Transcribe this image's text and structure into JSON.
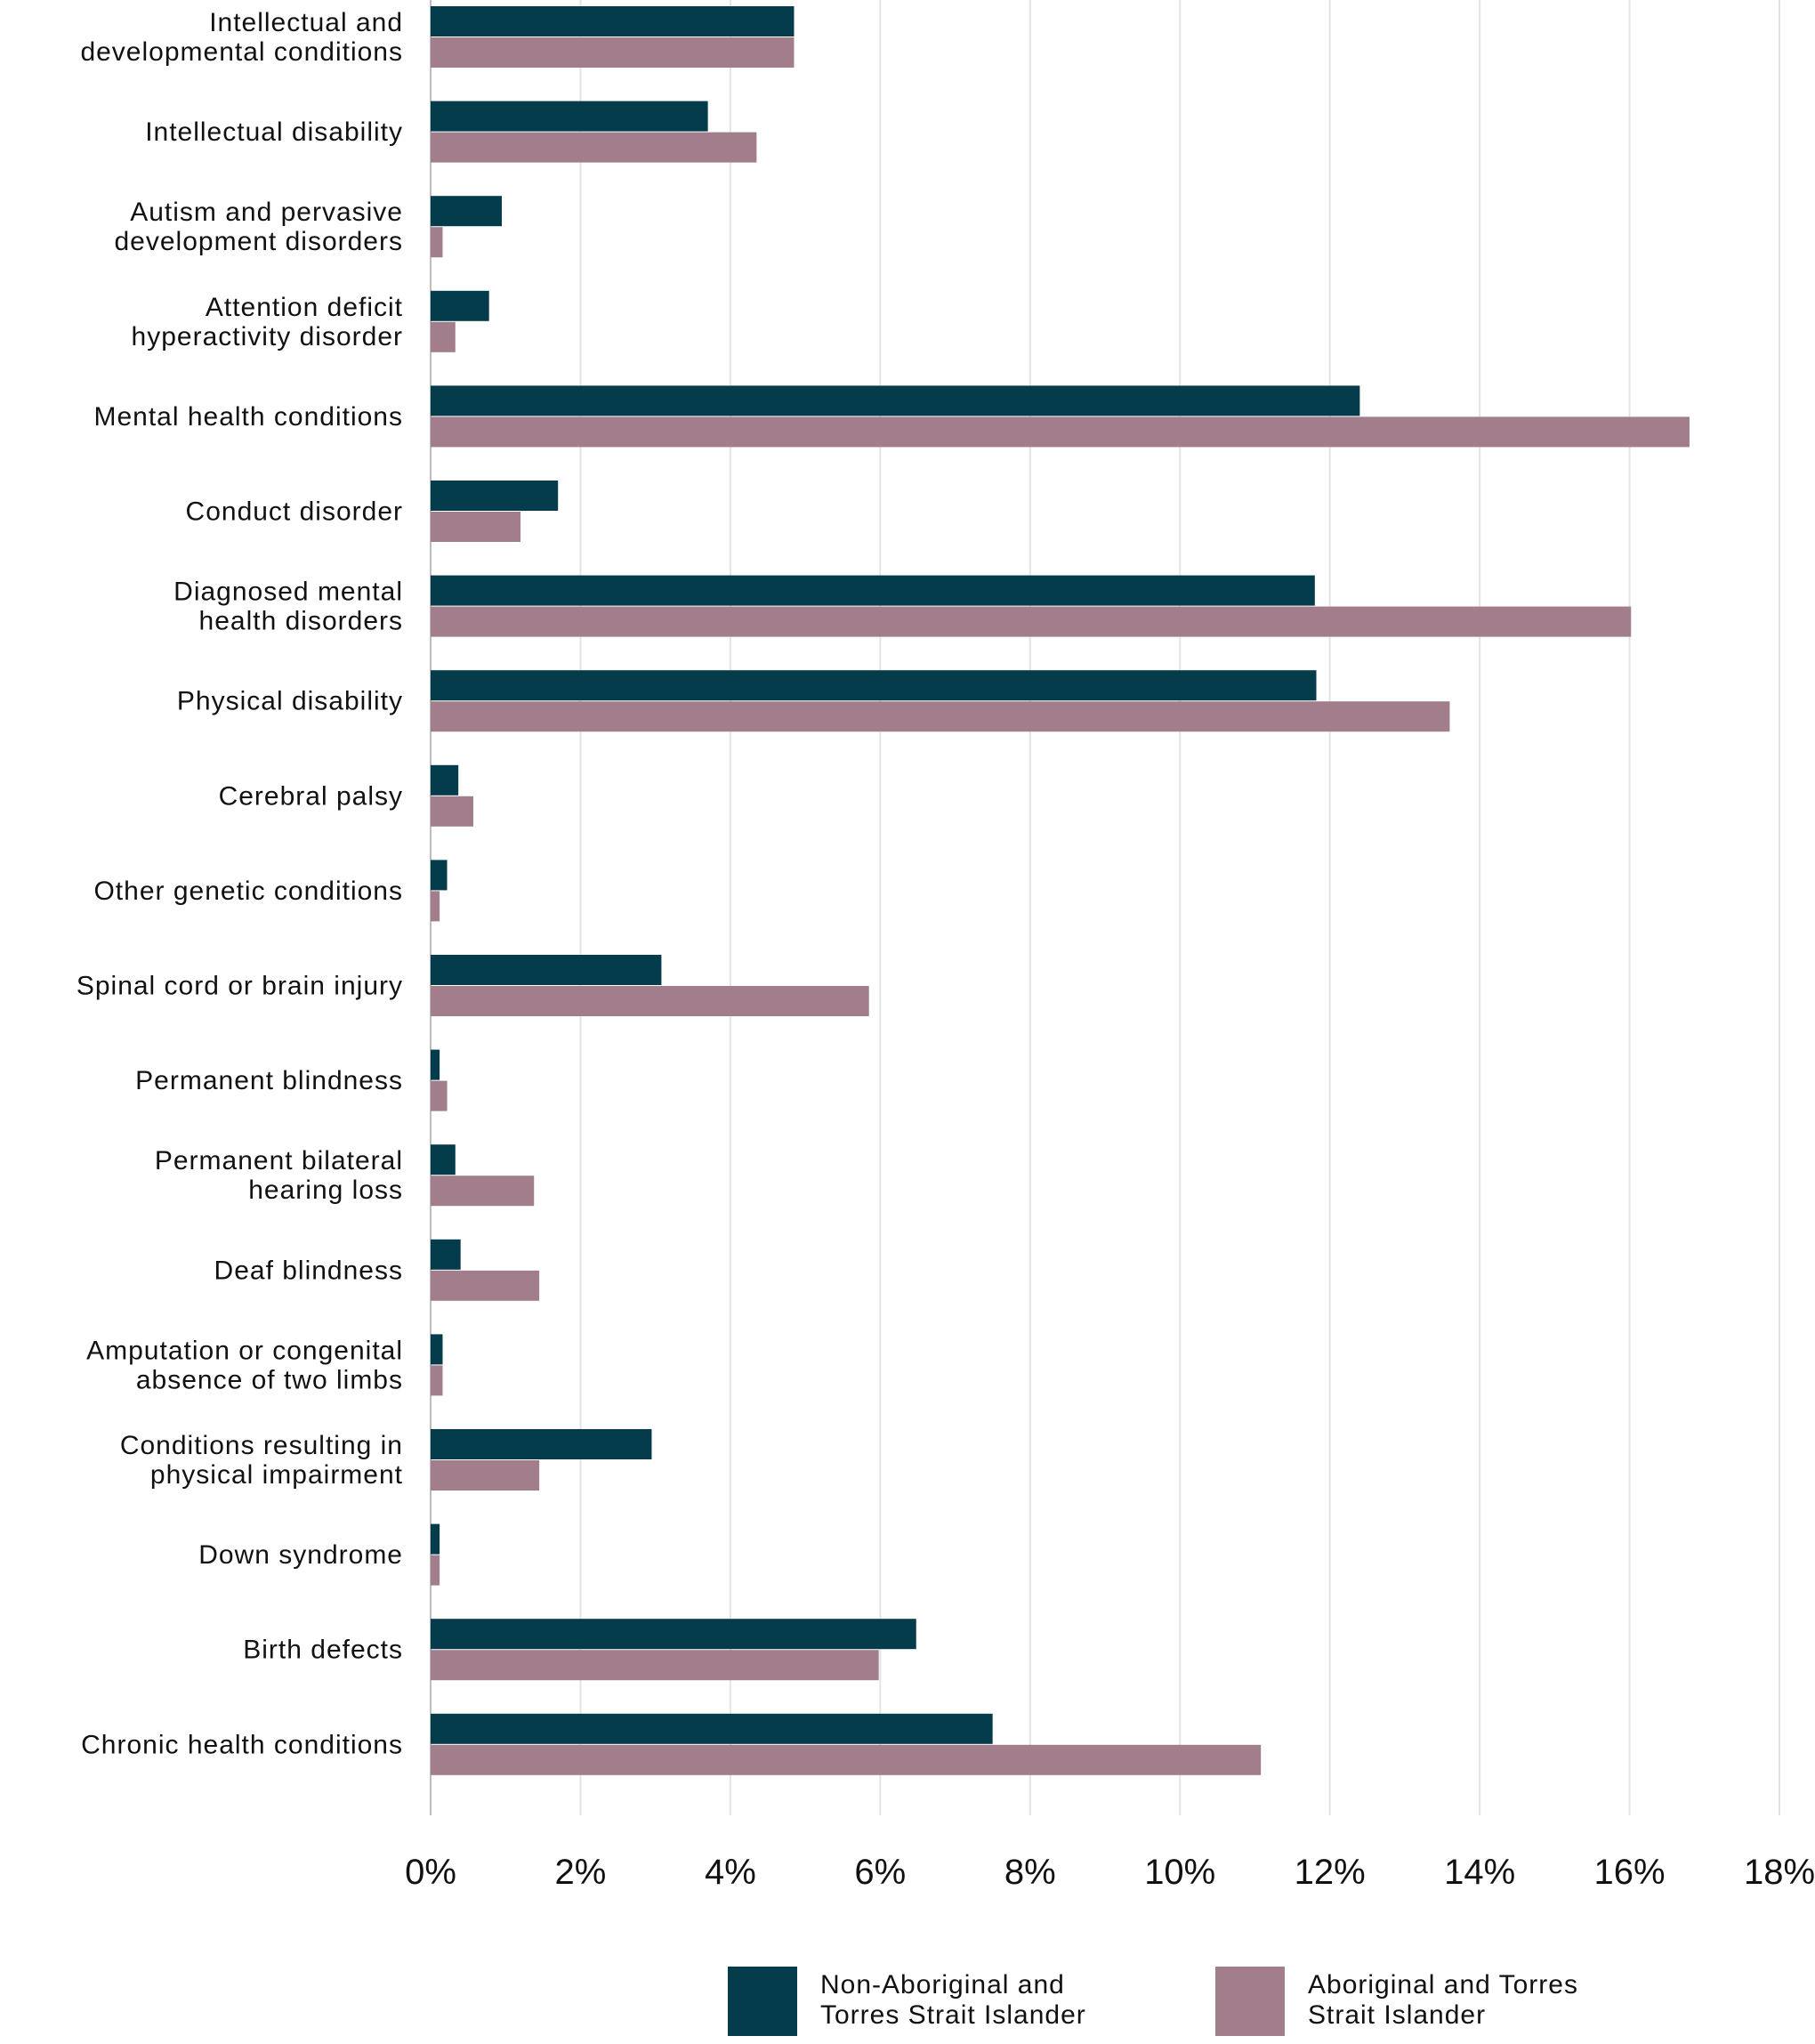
{
  "chart_data": {
    "type": "bar",
    "orientation": "horizontal",
    "title": "",
    "xlabel": "",
    "ylabel": "",
    "xlim": [
      0,
      18
    ],
    "x_ticks": [
      "0%",
      "2%",
      "4%",
      "6%",
      "8%",
      "10%",
      "12%",
      "14%",
      "16%",
      "18%"
    ],
    "grid": true,
    "legend_position": "bottom",
    "categories": [
      "Intellectual and developmental conditions",
      "Intellectual disability",
      "Autism and pervasive development disorders",
      "Attention deficit hyperactivity disorder",
      "Mental health conditions",
      "Conduct disorder",
      "Diagnosed mental health disorders",
      "Physical disability",
      "Cerebral palsy",
      "Other genetic conditions",
      "Spinal cord or brain injury",
      "Permanent blindness",
      "Permanent bilateral hearing loss",
      "Deaf blindness",
      "Amputation or congenital absence of two limbs",
      "Conditions resulting in physical impairment",
      "Down syndrome",
      "Birth defects",
      "Chronic health conditions"
    ],
    "category_lines": [
      [
        "Intellectual and",
        "developmental conditions"
      ],
      [
        "Intellectual disability"
      ],
      [
        "Autism and pervasive",
        "development disorders"
      ],
      [
        "Attention deficit",
        "hyperactivity disorder"
      ],
      [
        "Mental health conditions"
      ],
      [
        "Conduct disorder"
      ],
      [
        "Diagnosed mental",
        "health disorders"
      ],
      [
        "Physical disability"
      ],
      [
        "Cerebral palsy"
      ],
      [
        "Other genetic conditions"
      ],
      [
        "Spinal cord or brain injury"
      ],
      [
        "Permanent blindness"
      ],
      [
        "Permanent bilateral",
        "hearing loss"
      ],
      [
        "Deaf blindness"
      ],
      [
        "Amputation or congenital",
        "absence of two limbs"
      ],
      [
        "Conditions resulting in",
        "physical impairment"
      ],
      [
        "Down syndrome"
      ],
      [
        "Birth defects"
      ],
      [
        "Chronic health conditions"
      ]
    ],
    "series": [
      {
        "name": "Non-Aboriginal and Torres Strait Islander",
        "color": "#053c4b",
        "values": [
          4.85,
          3.7,
          0.95,
          0.78,
          12.4,
          1.7,
          11.8,
          11.82,
          0.37,
          0.22,
          3.08,
          0.12,
          0.33,
          0.4,
          0.16,
          2.95,
          0.12,
          6.48,
          7.5
        ]
      },
      {
        "name": "Aboriginal and Torres Strait Islander",
        "color": "#a27e8c",
        "values": [
          4.85,
          4.35,
          0.16,
          0.33,
          16.8,
          1.2,
          16.02,
          13.6,
          0.57,
          0.12,
          5.85,
          0.22,
          1.38,
          1.45,
          0.16,
          1.45,
          0.12,
          5.98,
          11.08
        ]
      }
    ]
  },
  "legend": {
    "items": [
      {
        "lines": [
          "Non-Aboriginal and",
          "Torres Strait Islander"
        ],
        "color": "#053c4b"
      },
      {
        "lines": [
          "Aboriginal and Torres",
          "Strait Islander"
        ],
        "color": "#a27e8c"
      }
    ]
  }
}
